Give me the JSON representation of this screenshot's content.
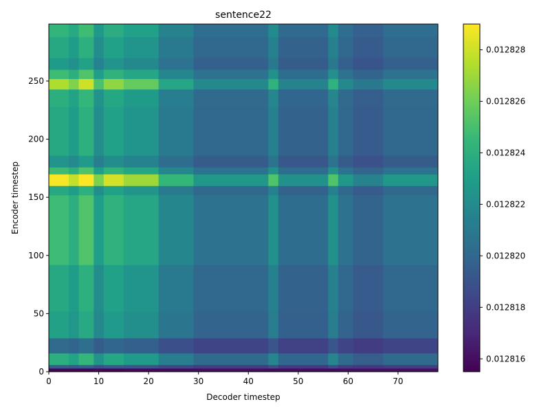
{
  "chart_data": {
    "type": "heatmap",
    "title": "sentence22",
    "xlabel": "Decoder timestep",
    "ylabel": "Encoder timestep",
    "xlim": [
      0,
      78
    ],
    "ylim": [
      0,
      299
    ],
    "x_ticks": [
      0,
      10,
      20,
      30,
      40,
      50,
      60,
      70
    ],
    "y_ticks": [
      0,
      50,
      100,
      150,
      200,
      250
    ],
    "colormap": "viridis",
    "colorbar": {
      "min": 0.0128155,
      "max": 0.012829,
      "ticks": [
        0.012816,
        0.012818,
        0.01282,
        0.012822,
        0.012824,
        0.012826,
        0.012828
      ],
      "tick_labels": [
        "0.012816",
        "0.012818",
        "0.012820",
        "0.012822",
        "0.012824",
        "0.012826",
        "0.012828"
      ]
    },
    "grid": false,
    "column_profile": [
      {
        "x": [
          0,
          4
        ],
        "v": 0.0128232
      },
      {
        "x": [
          4,
          6
        ],
        "v": 0.0128226
      },
      {
        "x": [
          6,
          9
        ],
        "v": 0.0128236
      },
      {
        "x": [
          9,
          11
        ],
        "v": 0.0128218
      },
      {
        "x": [
          11,
          15
        ],
        "v": 0.0128228
      },
      {
        "x": [
          15,
          22
        ],
        "v": 0.0128222
      },
      {
        "x": [
          22,
          29
        ],
        "v": 0.0128208
      },
      {
        "x": [
          29,
          44
        ],
        "v": 0.0128198
      },
      {
        "x": [
          44,
          46
        ],
        "v": 0.0128212
      },
      {
        "x": [
          46,
          56
        ],
        "v": 0.0128196
      },
      {
        "x": [
          56,
          58
        ],
        "v": 0.0128212
      },
      {
        "x": [
          58,
          61
        ],
        "v": 0.0128198
      },
      {
        "x": [
          61,
          67
        ],
        "v": 0.0128192
      },
      {
        "x": [
          67,
          78
        ],
        "v": 0.0128198
      }
    ],
    "row_profile": [
      {
        "y": [
          0,
          3
        ],
        "v": -4e-06
      },
      {
        "y": [
          3,
          6
        ],
        "v": -2e-06
      },
      {
        "y": [
          6,
          16
        ],
        "v": 4e-07
      },
      {
        "y": [
          16,
          29
        ],
        "v": -1.6e-06
      },
      {
        "y": [
          29,
          52
        ],
        "v": 0.0
      },
      {
        "y": [
          52,
          92
        ],
        "v": 2e-07
      },
      {
        "y": [
          92,
          152
        ],
        "v": 8e-07
      },
      {
        "y": [
          152,
          160
        ],
        "v": 2e-07
      },
      {
        "y": [
          160,
          170
        ],
        "v": 3e-06
      },
      {
        "y": [
          170,
          176
        ],
        "v": 8e-07
      },
      {
        "y": [
          176,
          186
        ],
        "v": -4e-07
      },
      {
        "y": [
          186,
          228
        ],
        "v": 2e-07
      },
      {
        "y": [
          228,
          243
        ],
        "v": 4e-07
      },
      {
        "y": [
          243,
          252
        ],
        "v": 2.2e-06
      },
      {
        "y": [
          252,
          260
        ],
        "v": 8e-07
      },
      {
        "y": [
          260,
          270
        ],
        "v": -2e-07
      },
      {
        "y": [
          270,
          288
        ],
        "v": 2e-07
      },
      {
        "y": [
          288,
          299
        ],
        "v": 6e-07
      }
    ]
  }
}
